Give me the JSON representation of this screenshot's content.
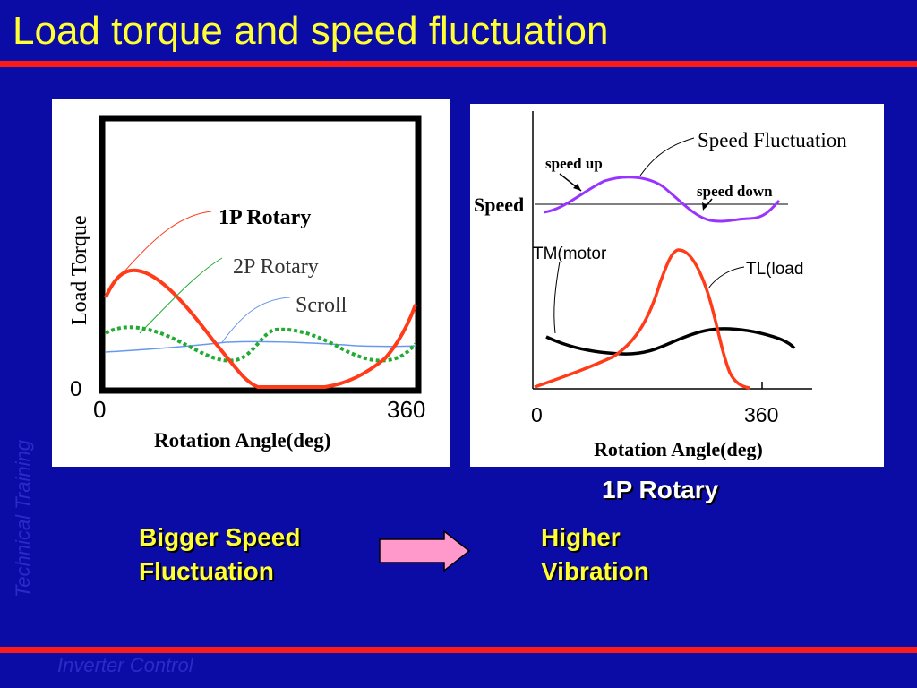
{
  "slide": {
    "title": "Load torque and speed fluctuation",
    "watermark_side": "Technical Training",
    "watermark_bottom": "Inverter Control"
  },
  "left_figure": {
    "y_axis_label": "Load Torque",
    "y_zero_label": "0",
    "x_start_label": "0",
    "x_end_label": "360",
    "x_axis_label": "Rotation Angle(deg)",
    "curve_labels": [
      "1P Rotary",
      "2P Rotary",
      "Scroll"
    ]
  },
  "right_figure": {
    "speed_label": "Speed",
    "speed_up_label": "speed up",
    "speed_down_label": "speed down",
    "speed_fluctuation_label": "Speed Fluctuation",
    "tm_label": "TM(motor",
    "tl_label": "TL(load",
    "x_start_label": "0",
    "x_end_label": "360",
    "x_axis_label": "Rotation Angle(deg)"
  },
  "captions": {
    "right_figure_caption": "1P Rotary",
    "left_line1": "Bigger Speed",
    "left_line2": "Fluctuation",
    "right_line1": "Higher",
    "right_line2": "Vibration"
  },
  "colors": {
    "background": "#0b0ba6",
    "title": "#ffff33",
    "rule": "#ff1a1a",
    "curve_1p": "#ff3b1a",
    "curve_2p": "#22aa33",
    "curve_scroll": "#6699ee",
    "speed_curve": "#9933ff",
    "arrow_fill": "#ff99cc"
  }
}
